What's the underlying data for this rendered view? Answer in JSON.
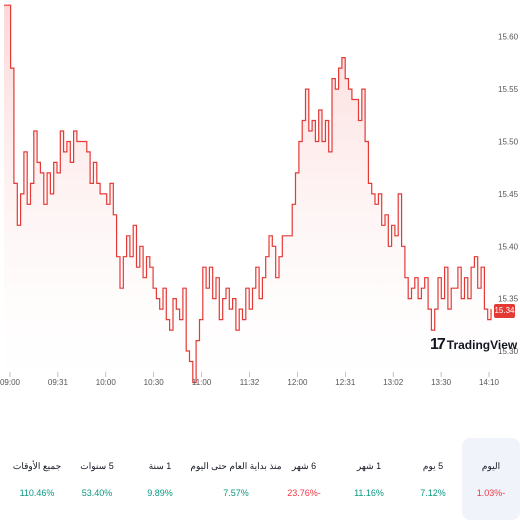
{
  "chart_data": {
    "type": "area",
    "y_ticks": [
      "15.60",
      "15.55",
      "15.50",
      "15.45",
      "15.40",
      "15.35",
      "15.30"
    ],
    "x_ticks": [
      "09:00",
      "09:31",
      "10:00",
      "10:30",
      "11:00",
      "11:32",
      "12:00",
      "12:31",
      "13:02",
      "13:30",
      "14:10"
    ],
    "ylim": [
      15.28,
      15.635
    ],
    "last_price": "15.34",
    "line_color": "#e53935",
    "fill_color": "#fde4e4",
    "prices": [
      15.63,
      15.63,
      15.57,
      15.46,
      15.42,
      15.45,
      15.49,
      15.44,
      15.46,
      15.51,
      15.48,
      15.47,
      15.44,
      15.47,
      15.45,
      15.48,
      15.47,
      15.51,
      15.49,
      15.5,
      15.48,
      15.51,
      15.5,
      15.5,
      15.5,
      15.49,
      15.46,
      15.48,
      15.46,
      15.45,
      15.45,
      15.44,
      15.46,
      15.43,
      15.39,
      15.36,
      15.39,
      15.41,
      15.39,
      15.42,
      15.38,
      15.4,
      15.37,
      15.39,
      15.38,
      15.36,
      15.35,
      15.34,
      15.36,
      15.33,
      15.32,
      15.35,
      15.34,
      15.33,
      15.36,
      15.3,
      15.29,
      15.27,
      15.31,
      15.33,
      15.38,
      15.36,
      15.38,
      15.35,
      15.37,
      15.33,
      15.35,
      15.36,
      15.34,
      15.35,
      15.32,
      15.34,
      15.33,
      15.36,
      15.34,
      15.36,
      15.38,
      15.35,
      15.37,
      15.39,
      15.41,
      15.4,
      15.37,
      15.39,
      15.41,
      15.41,
      15.41,
      15.44,
      15.47,
      15.5,
      15.52,
      15.55,
      15.51,
      15.52,
      15.5,
      15.53,
      15.5,
      15.52,
      15.49,
      15.56,
      15.55,
      15.57,
      15.58,
      15.56,
      15.55,
      15.54,
      15.54,
      15.52,
      15.55,
      15.5,
      15.46,
      15.45,
      15.44,
      15.45,
      15.42,
      15.43,
      15.4,
      15.42,
      15.41,
      15.45,
      15.4,
      15.37,
      15.35,
      15.36,
      15.37,
      15.35,
      15.36,
      15.37,
      15.34,
      15.32,
      15.34,
      15.37,
      15.35,
      15.38,
      15.34,
      15.36,
      15.36,
      15.38,
      15.35,
      15.37,
      15.35,
      15.38,
      15.39,
      15.36,
      15.38,
      15.34,
      15.33,
      15.34
    ]
  },
  "logo_text": "TradingView",
  "performance": [
    {
      "label": "اليوم",
      "value": "1.03%-",
      "trend": "neg",
      "selected": true
    },
    {
      "label": "5 يوم",
      "value": "7.12%",
      "trend": "pos",
      "selected": false
    },
    {
      "label": "1 شهر",
      "value": "11.16%",
      "trend": "pos",
      "selected": false
    },
    {
      "label": "6 شهر",
      "value": "23.76%-",
      "trend": "neg",
      "selected": false
    },
    {
      "label": "منذ بداية العام حتى اليوم",
      "value": "7.57%",
      "trend": "pos",
      "selected": false
    },
    {
      "label": "1 سنة",
      "value": "9.89%",
      "trend": "pos",
      "selected": false
    },
    {
      "label": "5 سنوات",
      "value": "53.40%",
      "trend": "pos",
      "selected": false
    },
    {
      "label": "جميع الأوقات",
      "value": "110.46%",
      "trend": "pos",
      "selected": false
    }
  ]
}
